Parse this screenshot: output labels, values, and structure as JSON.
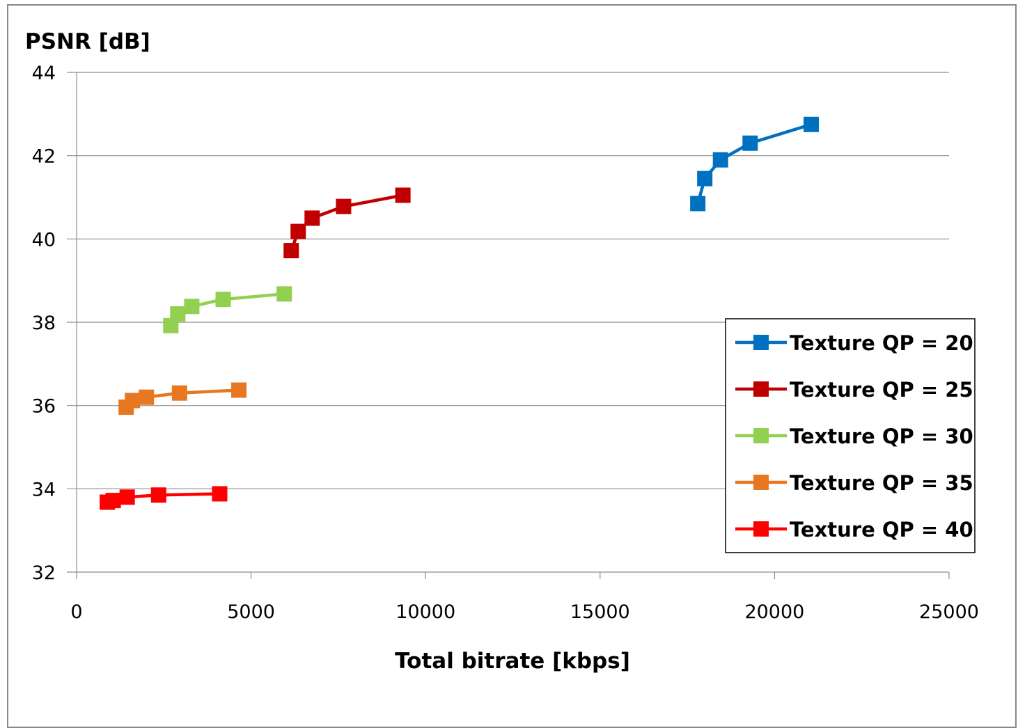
{
  "chart_data": {
    "type": "line",
    "title": "",
    "ylabel": "PSNR [dB]",
    "xlabel": "Total bitrate [kbps]",
    "xlim": [
      0,
      25000
    ],
    "ylim": [
      32,
      44
    ],
    "xticks": [
      "0",
      "5000",
      "10000",
      "15000",
      "20000",
      "25000"
    ],
    "yticks": [
      "32",
      "34",
      "36",
      "38",
      "40",
      "42",
      "44"
    ],
    "grid": "horizontal",
    "legend_position": "right",
    "series": [
      {
        "name": "Texture QP = 20",
        "color": "#0070C0",
        "points": [
          [
            17800,
            40.85
          ],
          [
            18000,
            41.45
          ],
          [
            18450,
            41.9
          ],
          [
            19300,
            42.3
          ],
          [
            21050,
            42.75
          ]
        ]
      },
      {
        "name": "Texture QP = 25",
        "color": "#C00000",
        "points": [
          [
            6150,
            39.72
          ],
          [
            6350,
            40.18
          ],
          [
            6750,
            40.5
          ],
          [
            7650,
            40.78
          ],
          [
            9350,
            41.05
          ]
        ]
      },
      {
        "name": "Texture QP = 30",
        "color": "#92D050",
        "points": [
          [
            2700,
            37.92
          ],
          [
            2900,
            38.2
          ],
          [
            3300,
            38.38
          ],
          [
            4200,
            38.55
          ],
          [
            5950,
            38.68
          ]
        ]
      },
      {
        "name": "Texture QP = 35",
        "color": "#E87722",
        "points": [
          [
            1420,
            35.96
          ],
          [
            1600,
            36.12
          ],
          [
            2000,
            36.2
          ],
          [
            2950,
            36.3
          ],
          [
            4650,
            36.37
          ]
        ]
      },
      {
        "name": "Texture QP = 40",
        "color": "#FF0000",
        "points": [
          [
            880,
            33.68
          ],
          [
            1050,
            33.72
          ],
          [
            1450,
            33.8
          ],
          [
            2350,
            33.85
          ],
          [
            4100,
            33.88
          ]
        ]
      }
    ]
  }
}
